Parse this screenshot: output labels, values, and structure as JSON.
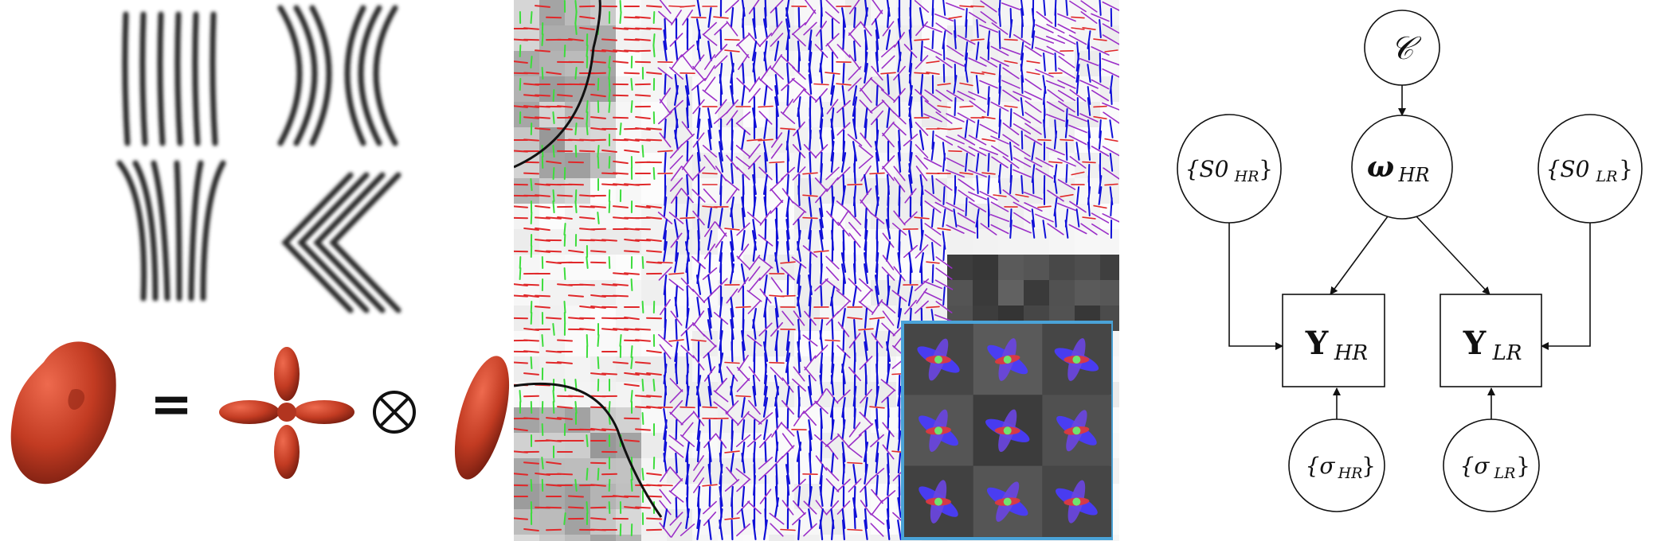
{
  "figure": {
    "left_panel": {
      "operators": {
        "equals": "=",
        "convolve": "⊗"
      },
      "glyph_color": "#c23b22",
      "fiber_color": "#1f1f1f"
    },
    "middle_panel": {
      "stick_colors": {
        "left_right": "#e0282a",
        "anterior_posterior": "#3ddc3d",
        "superior_inferior": "#1010d8",
        "mixed": "#9b30c8"
      },
      "inset_border_color": "#4aa3d8"
    },
    "graph": {
      "nodes": {
        "c": {
          "text": "𝒞",
          "shape": "circle"
        },
        "omega": {
          "base": "ω",
          "sub": "HR",
          "shape": "circle"
        },
        "s0_hr": {
          "base": "{S0",
          "sub": "HR",
          "close": "}",
          "shape": "circle"
        },
        "s0_lr": {
          "base": "{S0",
          "sub": "LR",
          "close": "}",
          "shape": "circle"
        },
        "y_hr": {
          "base": "Y",
          "sub": "HR",
          "shape": "box"
        },
        "y_lr": {
          "base": "Y",
          "sub": "LR",
          "shape": "box"
        },
        "sigma_hr": {
          "base": "{σ",
          "sub": "HR",
          "close": "}",
          "shape": "circle"
        },
        "sigma_lr": {
          "base": "{σ",
          "sub": "LR",
          "close": "}",
          "shape": "circle"
        }
      },
      "edges": [
        {
          "from": "c",
          "to": "omega"
        },
        {
          "from": "omega",
          "to": "y_hr"
        },
        {
          "from": "omega",
          "to": "y_lr"
        },
        {
          "from": "s0_hr",
          "to": "y_hr"
        },
        {
          "from": "s0_lr",
          "to": "y_lr"
        },
        {
          "from": "sigma_hr",
          "to": "y_hr"
        },
        {
          "from": "sigma_lr",
          "to": "y_lr"
        }
      ]
    }
  }
}
